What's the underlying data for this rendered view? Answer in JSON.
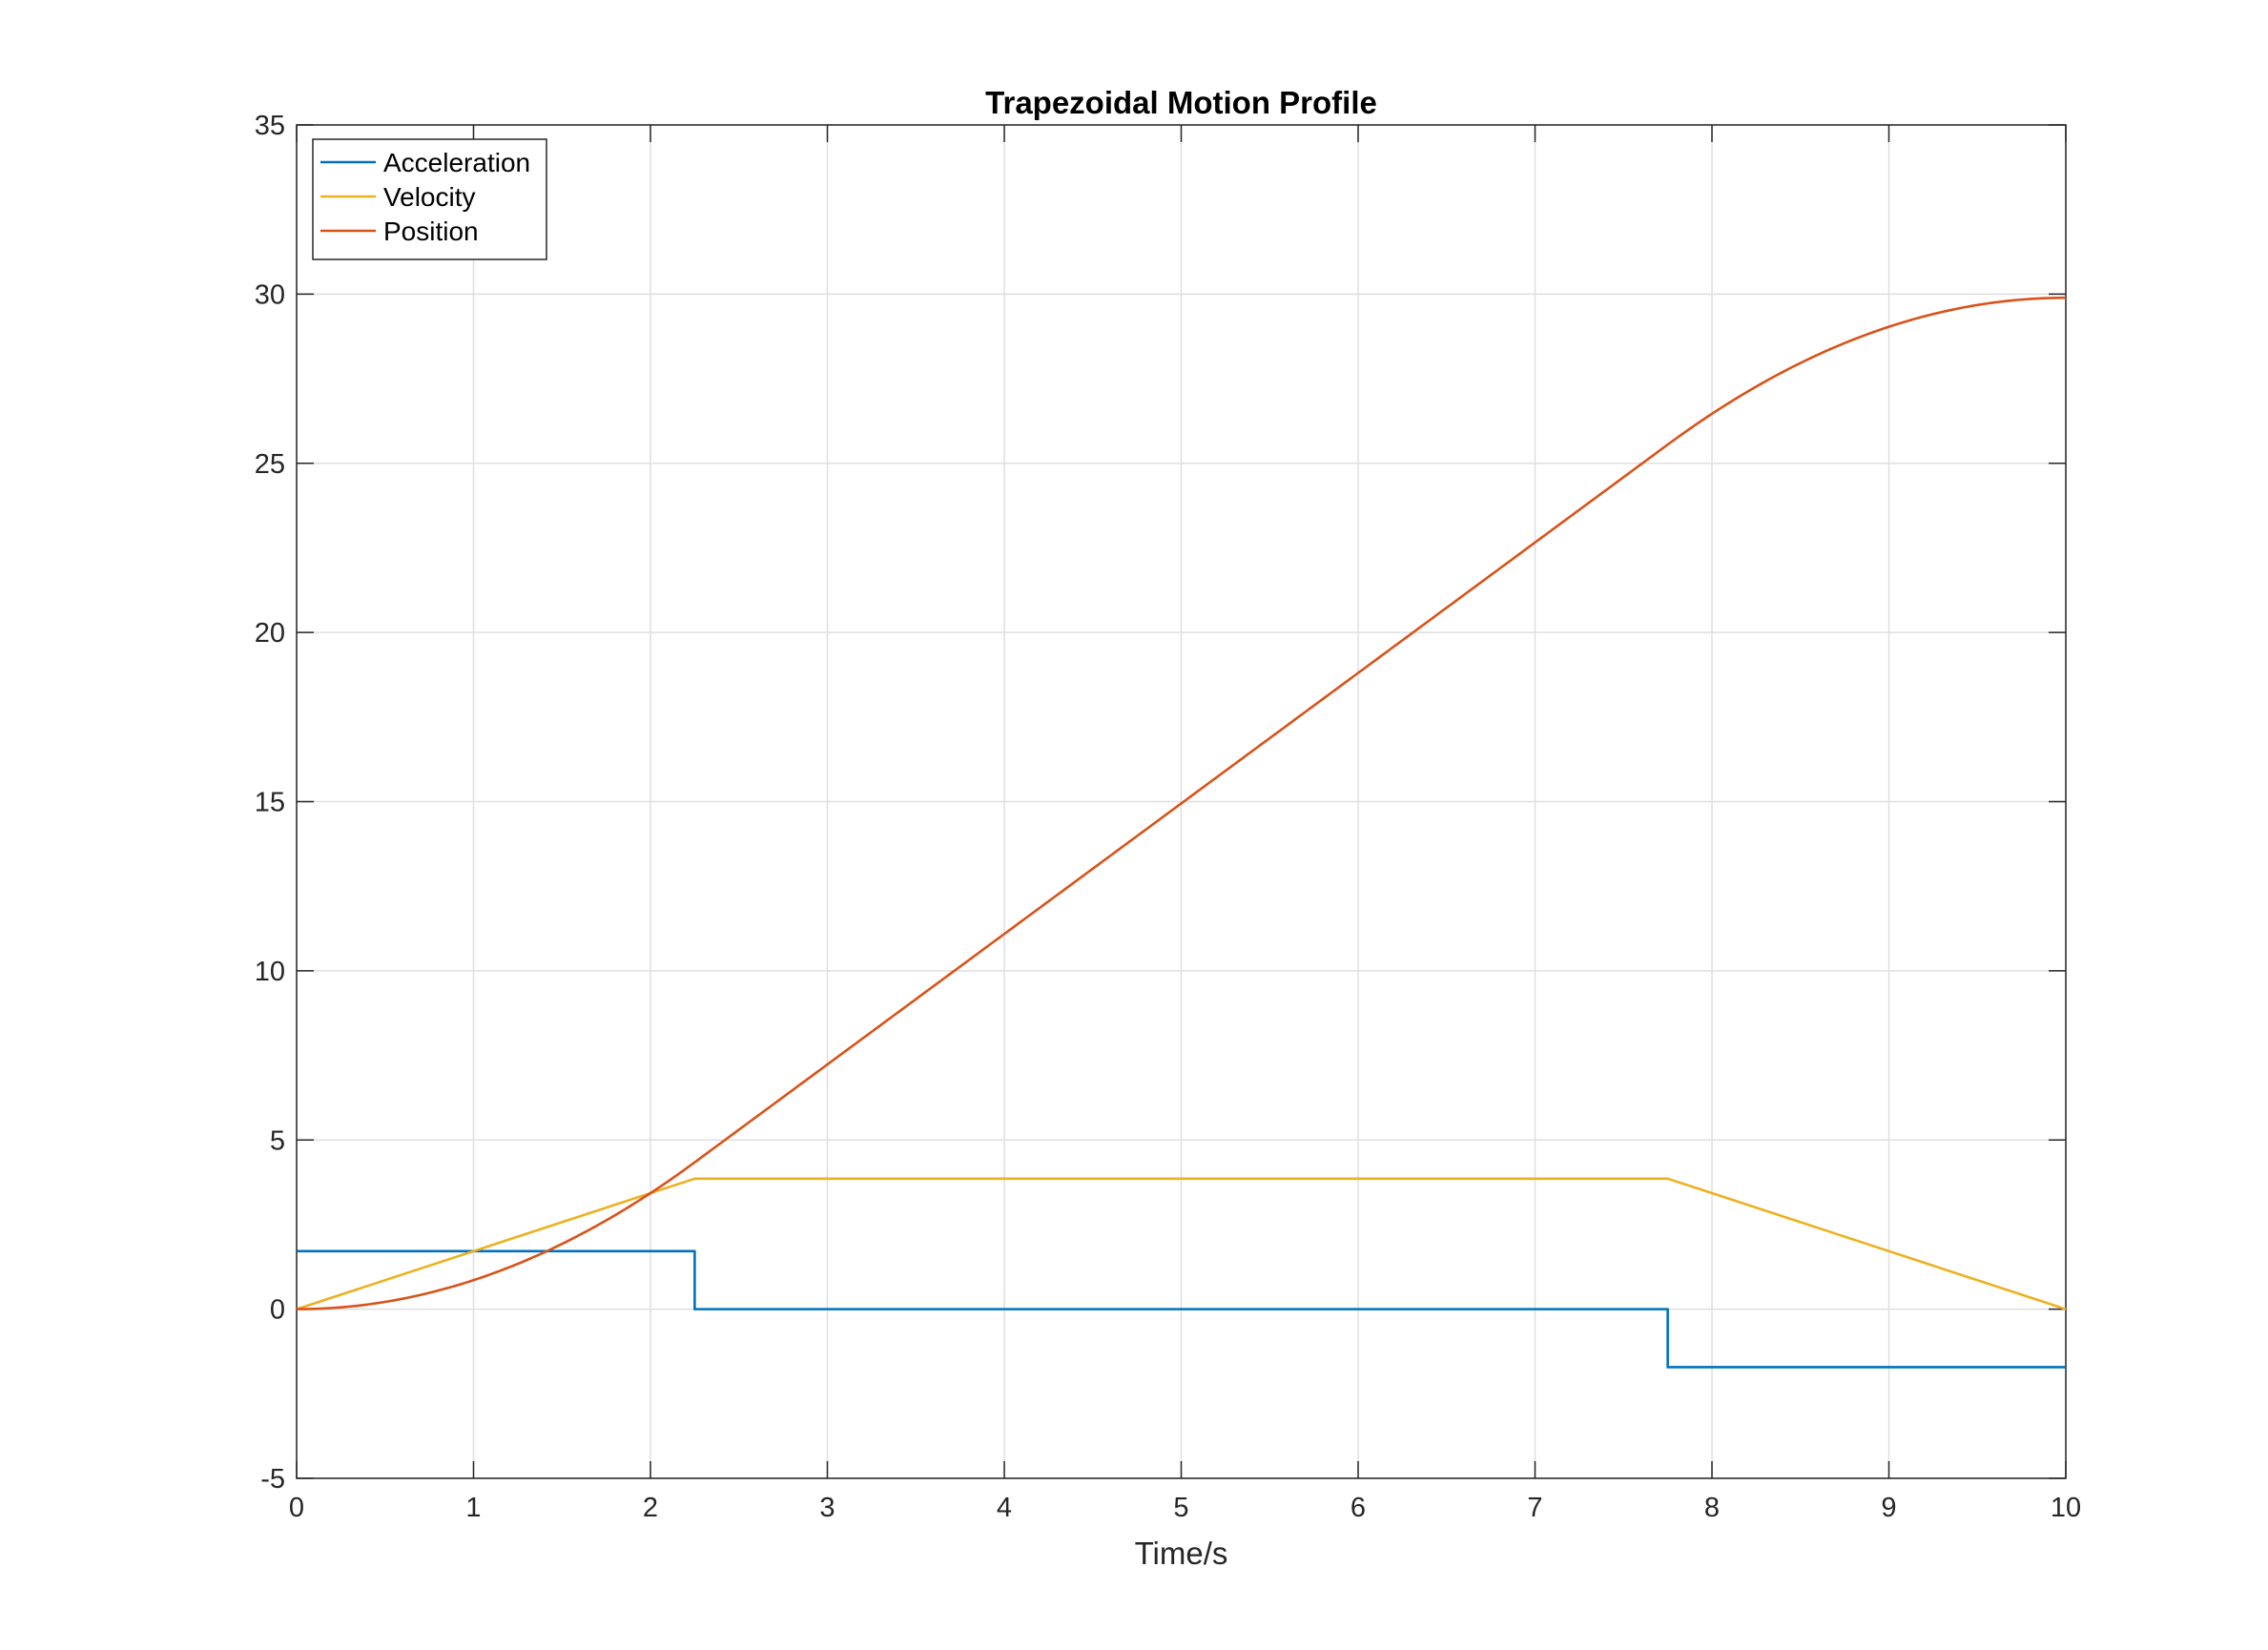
{
  "chart_data": {
    "type": "line",
    "title": "Trapezoidal Motion Profile",
    "xlabel": "Time/s",
    "ylabel": "",
    "xlim": [
      0,
      10
    ],
    "ylim": [
      -5,
      35
    ],
    "xticks": [
      "0",
      "1",
      "2",
      "3",
      "4",
      "5",
      "6",
      "7",
      "8",
      "9",
      "10"
    ],
    "yticks": [
      "-5",
      "0",
      "5",
      "10",
      "15",
      "20",
      "25",
      "30",
      "35"
    ],
    "grid": true,
    "legend_position": "top-left",
    "series": [
      {
        "name": "Acceleration",
        "color": "#0072BD",
        "x": [
          0,
          2.25,
          2.25,
          7.75,
          7.75,
          10
        ],
        "y": [
          1.7143,
          1.7143,
          0,
          0,
          -1.7143,
          -1.7143
        ]
      },
      {
        "name": "Velocity",
        "color": "#EDB120",
        "x": [
          0,
          2.25,
          7.75,
          10
        ],
        "y": [
          0,
          3.857,
          3.857,
          0
        ]
      },
      {
        "name": "Position",
        "color": "#D95319",
        "x": [
          0,
          0.25,
          0.5,
          0.75,
          1.0,
          1.25,
          1.5,
          1.75,
          2.0,
          2.25,
          3.0,
          4.0,
          5.0,
          6.0,
          7.0,
          7.75,
          8.0,
          8.25,
          8.5,
          8.75,
          9.0,
          9.25,
          9.5,
          9.75,
          10.0
        ],
        "y": [
          0,
          0.054,
          0.214,
          0.482,
          0.857,
          1.339,
          1.929,
          2.625,
          3.429,
          4.339,
          7.232,
          11.089,
          14.946,
          18.804,
          22.661,
          25.554,
          26.464,
          27.268,
          27.964,
          28.554,
          29.036,
          29.411,
          29.679,
          29.839,
          29.893
        ]
      }
    ]
  }
}
